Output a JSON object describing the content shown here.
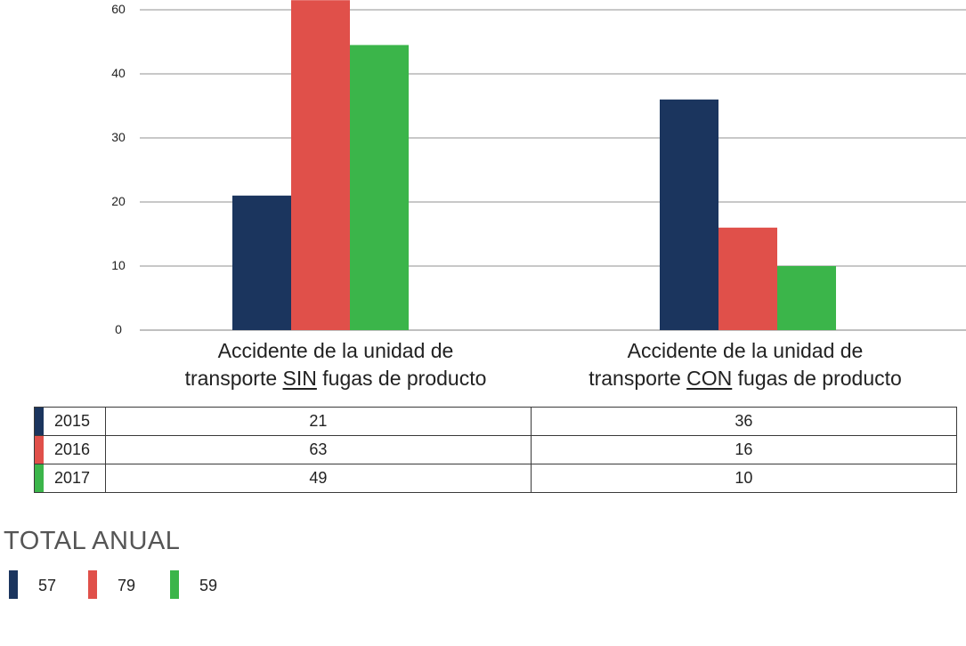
{
  "chart_data": {
    "type": "bar",
    "categories": [
      {
        "line1": "Accidente de la unidad de",
        "pre": "transporte ",
        "underlined": "SIN",
        "post": " fugas de producto"
      },
      {
        "line1": "Accidente de la unidad de",
        "pre": "transporte ",
        "underlined": "CON",
        "post": " fugas de producto"
      }
    ],
    "series": [
      {
        "name": "2015",
        "color": "#1b355e",
        "values": [
          21,
          36
        ]
      },
      {
        "name": "2016",
        "color": "#e0504a",
        "values": [
          63,
          16
        ]
      },
      {
        "name": "2017",
        "color": "#3bb54a",
        "values": [
          49,
          10
        ]
      }
    ],
    "yticks": [
      "0",
      "10",
      "20",
      "30",
      "40",
      "60"
    ],
    "grid": true
  },
  "table": {
    "rows": [
      {
        "year": "2015",
        "values": [
          "21",
          "36"
        ]
      },
      {
        "year": "2016",
        "values": [
          "63",
          "16"
        ]
      },
      {
        "year": "2017",
        "values": [
          "49",
          "10"
        ]
      }
    ]
  },
  "totals": {
    "title": "TOTAL ANUAL",
    "items": [
      {
        "value": "57",
        "color": "#1b355e"
      },
      {
        "value": "79",
        "color": "#e0504a"
      },
      {
        "value": "59",
        "color": "#3bb54a"
      }
    ]
  }
}
